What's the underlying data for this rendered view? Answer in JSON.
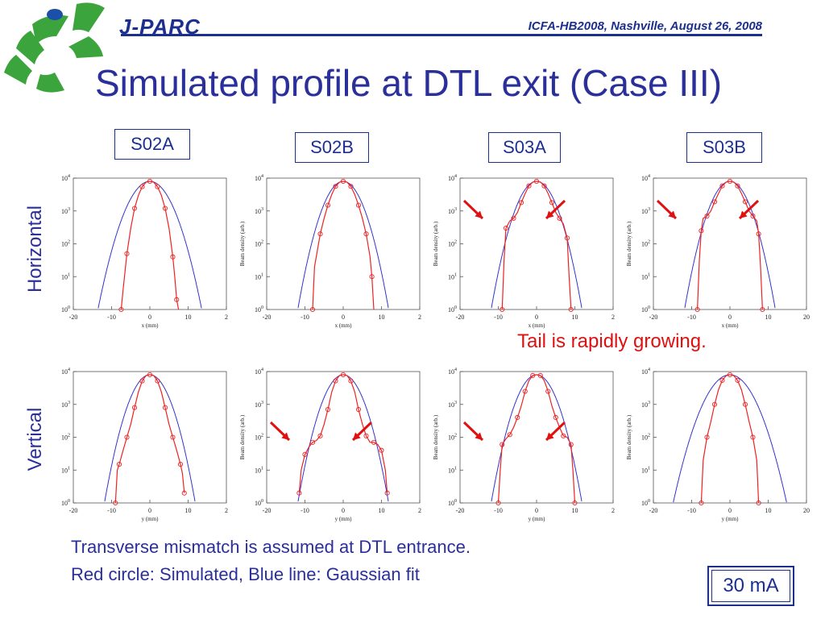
{
  "header": {
    "brand": "J-PARC",
    "conference": "ICFA-HB2008, Nashville, August 26, 2008",
    "title": "Simulated profile at DTL exit (Case III)"
  },
  "cases": [
    "S02A",
    "S02B",
    "S03A",
    "S03B"
  ],
  "row_labels": {
    "horizontal": "Horizontal",
    "vertical": "Vertical"
  },
  "annotation": "Tail is rapidly growing.",
  "footnotes": [
    "Transverse mismatch is assumed at DTL entrance.",
    "Red circle: Simulated, Blue line: Gaussian fit"
  ],
  "current": "30 mA",
  "colors": {
    "simulated": "#ee2222",
    "fit": "#3333cc",
    "text": "#2b2f9a",
    "arrow": "#e01010",
    "logo_green": "#3ca43c",
    "logo_blue": "#1c50a8"
  },
  "chart_data": [
    {
      "type": "line",
      "case": "S02A",
      "plane": "horizontal",
      "xlabel": "x (mm)",
      "ylabel": "",
      "xlim": [
        -20,
        20
      ],
      "ylim": [
        1,
        10000
      ],
      "yscale": "log",
      "xticks": [
        "-20",
        "-10",
        "0",
        "10",
        "2"
      ],
      "sigma": 3.2,
      "peak": 8000,
      "series": [
        {
          "name": "Simulated",
          "marker": "circle",
          "x": [
            -7.5,
            -7,
            -6,
            -5,
            -4,
            -3,
            -2,
            -1,
            0,
            1,
            2,
            3,
            4,
            5,
            6,
            6.5,
            7,
            7.5
          ],
          "y": [
            1,
            4,
            50,
            300,
            1200,
            3000,
            5500,
            7500,
            8000,
            7500,
            5500,
            3000,
            1200,
            300,
            40,
            10,
            2,
            1
          ]
        }
      ],
      "arrows": []
    },
    {
      "type": "line",
      "case": "S02B",
      "plane": "horizontal",
      "xlabel": "x (mm)",
      "ylabel": "Beam density (arb.)",
      "xlim": [
        -20,
        20
      ],
      "ylim": [
        1,
        10000
      ],
      "yscale": "log",
      "xticks": [
        "-20",
        "-10",
        "0",
        "10",
        "2"
      ],
      "sigma": 2.8,
      "peak": 8000,
      "series": [
        {
          "name": "Simulated",
          "marker": "circle",
          "x": [
            -8,
            -7.5,
            -6,
            -5,
            -4,
            -3,
            -2,
            -1,
            0,
            1,
            2,
            3,
            4,
            5,
            6,
            7,
            7.5,
            8
          ],
          "y": [
            1,
            20,
            200,
            600,
            1500,
            3200,
            5600,
            7500,
            8000,
            7500,
            5600,
            3200,
            1500,
            600,
            200,
            40,
            10,
            1
          ]
        }
      ],
      "arrows": []
    },
    {
      "type": "line",
      "case": "S03A",
      "plane": "horizontal",
      "xlabel": "x (mm)",
      "ylabel": "Beam density (arb.)",
      "xlim": [
        -20,
        20
      ],
      "ylim": [
        1,
        10000
      ],
      "yscale": "log",
      "xticks": [
        "-20",
        "-10",
        "0",
        "10",
        "2"
      ],
      "sigma": 2.8,
      "peak": 8000,
      "series": [
        {
          "name": "Simulated",
          "marker": "circle",
          "x": [
            -9,
            -8.5,
            -8,
            -7,
            -6,
            -5,
            -4,
            -3,
            -2,
            -1,
            0,
            1,
            2,
            3,
            4,
            5,
            6,
            7,
            8,
            8.5,
            9
          ],
          "y": [
            1,
            30,
            300,
            500,
            600,
            900,
            1800,
            3400,
            5800,
            7600,
            8000,
            7600,
            5800,
            3400,
            1800,
            900,
            600,
            400,
            150,
            10,
            1
          ]
        }
      ],
      "arrows": [
        "left",
        "right"
      ]
    },
    {
      "type": "line",
      "case": "S03B",
      "plane": "horizontal",
      "xlabel": "x (mm)",
      "ylabel": "Beam density (arb.)",
      "xlim": [
        -20,
        20
      ],
      "ylim": [
        1,
        10000
      ],
      "yscale": "log",
      "xticks": [
        "-20",
        "-10",
        "0",
        "10",
        "20"
      ],
      "sigma": 2.8,
      "peak": 8000,
      "series": [
        {
          "name": "Simulated",
          "marker": "circle",
          "x": [
            -8.5,
            -8,
            -7.5,
            -7,
            -6,
            -5,
            -4,
            -3,
            -2,
            -1,
            0,
            1,
            2,
            3,
            4,
            5,
            6,
            7,
            7.5,
            8,
            8.5
          ],
          "y": [
            1,
            30,
            250,
            600,
            700,
            1000,
            1900,
            3400,
            5800,
            7600,
            8000,
            7600,
            5800,
            3400,
            1900,
            1000,
            700,
            500,
            200,
            20,
            1
          ]
        }
      ],
      "arrows": [
        "left",
        "right"
      ]
    },
    {
      "type": "line",
      "case": "S02A",
      "plane": "vertical",
      "xlabel": "y (mm)",
      "ylabel": "",
      "xlim": [
        -20,
        20
      ],
      "ylim": [
        1,
        10000
      ],
      "yscale": "log",
      "xticks": [
        "-20",
        "-10",
        "0",
        "10",
        "2"
      ],
      "sigma": 2.8,
      "peak": 8000,
      "series": [
        {
          "name": "Simulated",
          "marker": "circle",
          "x": [
            -9,
            -8.5,
            -8,
            -7,
            -6,
            -5,
            -4,
            -3,
            -2,
            -1,
            0,
            1,
            2,
            3,
            4,
            5,
            6,
            7,
            8,
            8.5,
            9
          ],
          "y": [
            1,
            10,
            15,
            40,
            100,
            250,
            800,
            2400,
            5200,
            7600,
            8000,
            7600,
            5200,
            2400,
            800,
            250,
            100,
            40,
            15,
            8,
            2
          ]
        }
      ],
      "arrows": []
    },
    {
      "type": "line",
      "case": "S02B",
      "plane": "vertical",
      "xlabel": "y (mm)",
      "ylabel": "Beam density (arb.)",
      "xlim": [
        -20,
        20
      ],
      "ylim": [
        1,
        10000
      ],
      "yscale": "log",
      "xticks": [
        "-20",
        "-10",
        "0",
        "10",
        "2"
      ],
      "sigma": 2.8,
      "peak": 8000,
      "series": [
        {
          "name": "Simulated",
          "marker": "circle",
          "x": [
            -11.5,
            -11,
            -10,
            -9,
            -8,
            -7,
            -6,
            -5,
            -4,
            -3,
            -2,
            -1,
            0,
            1,
            2,
            3,
            4,
            5,
            6,
            7,
            8,
            9,
            10,
            11,
            11.5
          ],
          "y": [
            2,
            10,
            30,
            50,
            70,
            80,
            110,
            250,
            700,
            2400,
            5200,
            7600,
            8000,
            7600,
            5200,
            2400,
            700,
            250,
            110,
            70,
            70,
            60,
            40,
            10,
            2
          ]
        }
      ],
      "arrows": [
        "left",
        "right"
      ]
    },
    {
      "type": "line",
      "case": "S03A",
      "plane": "vertical",
      "xlabel": "y (mm)",
      "ylabel": "Beam density (arb.)",
      "xlim": [
        -20,
        20
      ],
      "ylim": [
        1,
        10000
      ],
      "yscale": "log",
      "xticks": [
        "-20",
        "-10",
        "0",
        "10",
        "2"
      ],
      "sigma": 2.8,
      "peak": 8000,
      "series": [
        {
          "name": "Simulated",
          "marker": "circle",
          "x": [
            -10,
            -9.5,
            -9,
            -8,
            -7,
            -6,
            -5,
            -4,
            -3,
            -2,
            -1,
            0,
            1,
            2,
            3,
            4,
            5,
            6,
            7,
            8,
            9,
            9.5,
            10
          ],
          "y": [
            1,
            10,
            60,
            90,
            120,
            200,
            400,
            900,
            2500,
            5300,
            7600,
            8000,
            7600,
            5300,
            2500,
            900,
            400,
            200,
            110,
            100,
            60,
            10,
            1
          ]
        }
      ],
      "arrows": [
        "left",
        "right"
      ]
    },
    {
      "type": "line",
      "case": "S03B",
      "plane": "vertical",
      "xlabel": "y (mm)",
      "ylabel": "Beam density (arb.)",
      "xlim": [
        -20,
        20
      ],
      "ylim": [
        1,
        10000
      ],
      "yscale": "log",
      "xticks": [
        "-20",
        "-10",
        "0",
        "10",
        "20"
      ],
      "sigma": 3.5,
      "peak": 8000,
      "series": [
        {
          "name": "Simulated",
          "marker": "circle",
          "x": [
            -7.5,
            -7,
            -6,
            -5,
            -4,
            -3,
            -2,
            -1,
            0,
            1,
            2,
            3,
            4,
            5,
            6,
            7,
            7.5
          ],
          "y": [
            1,
            20,
            100,
            300,
            1000,
            2800,
            5400,
            7500,
            8000,
            7500,
            5400,
            2800,
            1000,
            300,
            100,
            20,
            1
          ]
        }
      ],
      "arrows": []
    }
  ]
}
